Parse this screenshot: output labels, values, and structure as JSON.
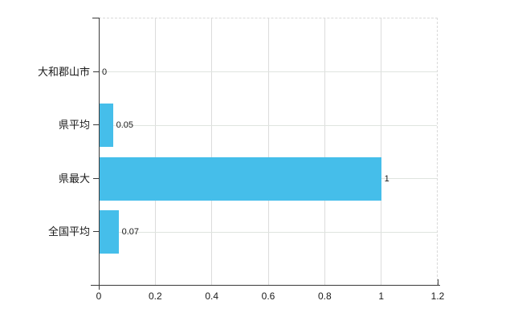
{
  "chart_data": {
    "type": "bar",
    "orientation": "horizontal",
    "title": "",
    "xlabel": "",
    "ylabel": "",
    "categories": [
      "大和郡山市",
      "県平均",
      "県最大",
      "全国平均"
    ],
    "values": [
      0,
      0.05,
      1,
      0.07
    ],
    "value_labels": [
      "0",
      "0.05",
      "1",
      "0.07"
    ],
    "x_ticks": [
      0,
      0.2,
      0.4,
      0.6,
      0.8,
      1,
      1.2
    ],
    "x_tick_labels": [
      "0",
      "0.2",
      "0.4",
      "0.6",
      "0.8",
      "1",
      "1.2"
    ],
    "xlim": [
      0,
      1.2
    ],
    "grid": "on",
    "legend": "none",
    "bar_color": "#45beea",
    "grid_color": "#dcdcdc",
    "axis_color": "#3a3a3a",
    "label_color": "#1a1a1a"
  }
}
